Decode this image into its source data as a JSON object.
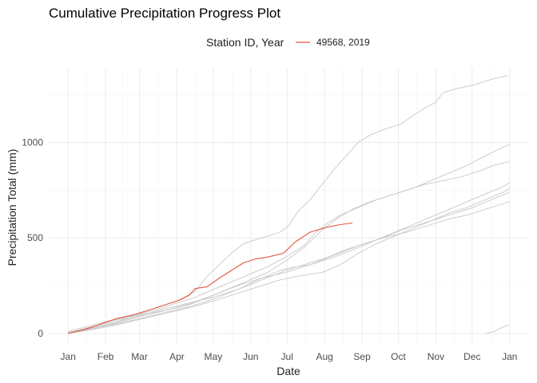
{
  "chart_data": {
    "type": "line",
    "title": "Cumulative Precipitation Progress Plot",
    "xlabel": "Date",
    "ylabel": "Precipitation Total (mm)",
    "legend": {
      "title": "Station ID, Year",
      "position": "top",
      "entries": [
        {
          "label": "49568, 2019",
          "color": "#e8553e"
        }
      ]
    },
    "x_axis": {
      "ticks": [
        "Jan",
        "Feb",
        "Mar",
        "Apr",
        "May",
        "Jun",
        "Jul",
        "Aug",
        "Sep",
        "Oct",
        "Nov",
        "Dec",
        "Jan"
      ],
      "tick_days": [
        0,
        31,
        59,
        90,
        120,
        151,
        181,
        212,
        243,
        273,
        304,
        334,
        365
      ],
      "range_days": [
        -16,
        381
      ]
    },
    "y_axis": {
      "ticks": [
        0,
        500,
        1000
      ],
      "ylim": [
        -50,
        1390
      ]
    },
    "grid": true,
    "series": [
      {
        "color": "#e8553e",
        "highlight": true,
        "points": [
          [
            0,
            0
          ],
          [
            12,
            18
          ],
          [
            25,
            45
          ],
          [
            40,
            78
          ],
          [
            55,
            100
          ],
          [
            68,
            125
          ],
          [
            80,
            150
          ],
          [
            92,
            175
          ],
          [
            100,
            200
          ],
          [
            105,
            235
          ],
          [
            115,
            245
          ],
          [
            125,
            290
          ],
          [
            135,
            330
          ],
          [
            145,
            370
          ],
          [
            155,
            390
          ],
          [
            165,
            400
          ],
          [
            178,
            420
          ],
          [
            188,
            480
          ],
          [
            200,
            530
          ],
          [
            213,
            555
          ],
          [
            225,
            570
          ],
          [
            235,
            578
          ]
        ]
      },
      {
        "color": "#c8c8c8",
        "points": [
          [
            0,
            5
          ],
          [
            20,
            30
          ],
          [
            40,
            60
          ],
          [
            60,
            110
          ],
          [
            75,
            140
          ],
          [
            90,
            170
          ],
          [
            105,
            220
          ],
          [
            115,
            300
          ],
          [
            125,
            360
          ],
          [
            135,
            420
          ],
          [
            145,
            470
          ],
          [
            160,
            500
          ],
          [
            175,
            530
          ],
          [
            182,
            560
          ],
          [
            190,
            640
          ],
          [
            200,
            700
          ],
          [
            210,
            780
          ],
          [
            220,
            860
          ],
          [
            230,
            930
          ],
          [
            240,
            1000
          ],
          [
            250,
            1040
          ],
          [
            262,
            1070
          ],
          [
            275,
            1095
          ],
          [
            285,
            1140
          ],
          [
            295,
            1180
          ],
          [
            304,
            1210
          ],
          [
            310,
            1260
          ],
          [
            320,
            1280
          ],
          [
            335,
            1300
          ],
          [
            350,
            1330
          ],
          [
            363,
            1350
          ]
        ]
      },
      {
        "color": "#c8c8c8",
        "points": [
          [
            0,
            10
          ],
          [
            15,
            35
          ],
          [
            30,
            60
          ],
          [
            50,
            90
          ],
          [
            70,
            120
          ],
          [
            90,
            160
          ],
          [
            105,
            190
          ],
          [
            120,
            230
          ],
          [
            135,
            270
          ],
          [
            150,
            310
          ],
          [
            165,
            350
          ],
          [
            180,
            400
          ],
          [
            195,
            460
          ],
          [
            205,
            530
          ],
          [
            215,
            580
          ],
          [
            225,
            620
          ],
          [
            240,
            660
          ],
          [
            255,
            700
          ],
          [
            270,
            730
          ],
          [
            285,
            760
          ],
          [
            300,
            800
          ],
          [
            315,
            840
          ],
          [
            330,
            880
          ],
          [
            345,
            930
          ],
          [
            358,
            970
          ],
          [
            365,
            990
          ]
        ]
      },
      {
        "color": "#c8c8c8",
        "points": [
          [
            0,
            5
          ],
          [
            20,
            25
          ],
          [
            40,
            55
          ],
          [
            60,
            90
          ],
          [
            80,
            120
          ],
          [
            100,
            150
          ],
          [
            120,
            200
          ],
          [
            135,
            240
          ],
          [
            150,
            280
          ],
          [
            165,
            320
          ],
          [
            180,
            380
          ],
          [
            195,
            450
          ],
          [
            210,
            540
          ],
          [
            222,
            600
          ],
          [
            235,
            650
          ],
          [
            250,
            690
          ],
          [
            265,
            720
          ],
          [
            280,
            750
          ],
          [
            295,
            780
          ],
          [
            310,
            800
          ],
          [
            325,
            820
          ],
          [
            340,
            850
          ],
          [
            352,
            880
          ],
          [
            365,
            900
          ]
        ]
      },
      {
        "color": "#c8c8c8",
        "points": [
          [
            0,
            3
          ],
          [
            20,
            25
          ],
          [
            40,
            50
          ],
          [
            60,
            80
          ],
          [
            80,
            110
          ],
          [
            100,
            140
          ],
          [
            120,
            180
          ],
          [
            140,
            230
          ],
          [
            160,
            290
          ],
          [
            175,
            330
          ],
          [
            185,
            345
          ],
          [
            200,
            360
          ],
          [
            220,
            400
          ],
          [
            240,
            450
          ],
          [
            255,
            490
          ],
          [
            270,
            530
          ],
          [
            285,
            570
          ],
          [
            300,
            610
          ],
          [
            315,
            650
          ],
          [
            330,
            690
          ],
          [
            345,
            730
          ],
          [
            360,
            770
          ],
          [
            365,
            790
          ]
        ]
      },
      {
        "color": "#c8c8c8",
        "points": [
          [
            0,
            2
          ],
          [
            20,
            20
          ],
          [
            40,
            45
          ],
          [
            60,
            75
          ],
          [
            80,
            105
          ],
          [
            100,
            135
          ],
          [
            120,
            170
          ],
          [
            140,
            210
          ],
          [
            160,
            250
          ],
          [
            175,
            280
          ],
          [
            190,
            300
          ],
          [
            210,
            320
          ],
          [
            225,
            360
          ],
          [
            240,
            420
          ],
          [
            255,
            470
          ],
          [
            270,
            510
          ],
          [
            285,
            550
          ],
          [
            300,
            590
          ],
          [
            315,
            630
          ],
          [
            330,
            660
          ],
          [
            345,
            700
          ],
          [
            360,
            740
          ],
          [
            365,
            760
          ]
        ]
      },
      {
        "color": "#c8c8c8",
        "points": [
          [
            0,
            4
          ],
          [
            20,
            30
          ],
          [
            40,
            60
          ],
          [
            60,
            95
          ],
          [
            80,
            130
          ],
          [
            100,
            160
          ],
          [
            120,
            190
          ],
          [
            140,
            230
          ],
          [
            160,
            280
          ],
          [
            180,
            330
          ],
          [
            200,
            370
          ],
          [
            215,
            400
          ],
          [
            230,
            440
          ],
          [
            245,
            470
          ],
          [
            260,
            500
          ],
          [
            275,
            540
          ],
          [
            290,
            570
          ],
          [
            305,
            600
          ],
          [
            320,
            630
          ],
          [
            335,
            660
          ],
          [
            350,
            700
          ],
          [
            365,
            740
          ]
        ]
      },
      {
        "color": "#c8c8c8",
        "points": [
          [
            0,
            6
          ],
          [
            20,
            35
          ],
          [
            40,
            70
          ],
          [
            60,
            100
          ],
          [
            80,
            120
          ],
          [
            100,
            155
          ],
          [
            120,
            200
          ],
          [
            140,
            250
          ],
          [
            160,
            290
          ],
          [
            180,
            320
          ],
          [
            200,
            360
          ],
          [
            220,
            410
          ],
          [
            240,
            460
          ],
          [
            260,
            500
          ],
          [
            280,
            530
          ],
          [
            300,
            570
          ],
          [
            315,
            600
          ],
          [
            330,
            620
          ],
          [
            345,
            650
          ],
          [
            355,
            670
          ],
          [
            365,
            690
          ]
        ]
      },
      {
        "color": "#c8c8c8",
        "points": [
          [
            345,
            0
          ],
          [
            352,
            10
          ],
          [
            358,
            30
          ],
          [
            364,
            45
          ]
        ]
      }
    ]
  }
}
